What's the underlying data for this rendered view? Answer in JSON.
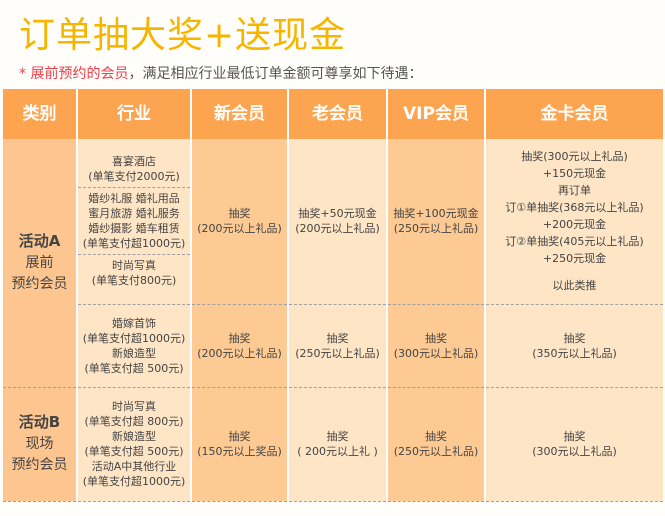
{
  "title": "订单抽大奖+送现金",
  "subtitle": {
    "highlight": "* 展前预约的会员",
    "rest": "，满足相应行业最低订单金额可尊享如下待遇："
  },
  "headers": [
    "类别",
    "行业",
    "新会员",
    "老会员",
    "VIP会员",
    "金卡会员"
  ],
  "rows": [
    {
      "category": {
        "name": "活动A",
        "lines": [
          "展前",
          "预约会员"
        ]
      },
      "industry": [
        [
          "喜宴酒店",
          "(单笔支付2000元)"
        ],
        [
          "婚纱礼服  婚礼用品",
          "蜜月旅游  婚礼服务",
          "婚纱摄影  婚车租赁",
          "(单笔支付超1000元)"
        ],
        [
          "时尚写真",
          "(单笔支付800元)"
        ]
      ],
      "new": [
        "抽奖",
        "(200元以上礼品)"
      ],
      "old": [
        "抽奖+50元现金",
        "(200元以上礼品)"
      ],
      "vip": [
        "抽奖+100元现金",
        "(250元以上礼品)"
      ],
      "gold": [
        "抽奖(300元以上礼品)",
        "+150元现金",
        "再订单",
        "订①单抽奖(368元以上礼品)",
        "+200元现金",
        "订②单抽奖(405元以上礼品)",
        "+250元现金",
        "以此类推"
      ]
    },
    {
      "industry": [
        [
          "婚嫁首饰",
          "(单笔支付超1000元)",
          "新娘造型",
          "(单笔支付超 500元)"
        ]
      ],
      "new": [
        "抽奖",
        "(200元以上礼品)"
      ],
      "old": [
        "抽奖",
        "(250元以上礼品)"
      ],
      "vip": [
        "抽奖",
        "(300元以上礼品)"
      ],
      "gold": [
        "抽奖",
        "(350元以上礼品)"
      ]
    },
    {
      "category": {
        "name": "活动B",
        "lines": [
          "现场",
          "预约会员"
        ]
      },
      "industry": [
        [
          "时尚写真",
          "(单笔支付超 800元)",
          "新娘造型",
          "(单笔支付超 500元)",
          "活动A中其他行业",
          "(单笔支付超1000元)"
        ]
      ],
      "new": [
        "抽奖",
        "(150元以上奖品)"
      ],
      "old": [
        "抽奖",
        "( 200元以上礼 )"
      ],
      "vip": [
        "抽奖",
        "(250元以上礼品)"
      ],
      "gold": [
        "抽奖",
        "(300元以上礼品)"
      ]
    }
  ],
  "colors": {
    "title": "#f7b500",
    "header": "#fca44f",
    "category": "#fdc690",
    "light": "#fee5c6",
    "dark": "#fdca94",
    "highlight": "#ef3d4a"
  }
}
